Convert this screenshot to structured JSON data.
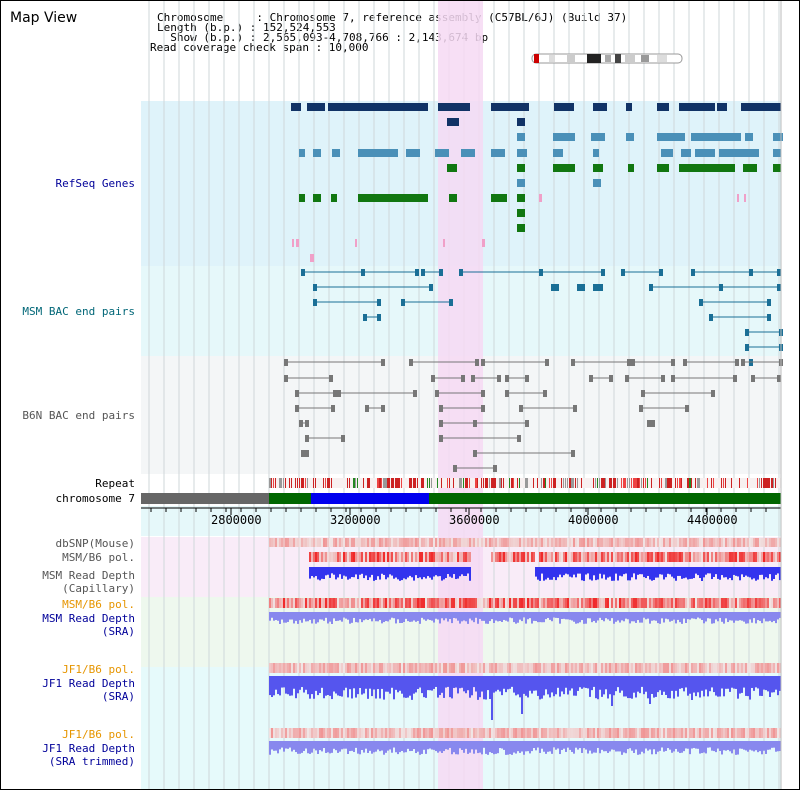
{
  "title": "Map View",
  "header": {
    "line1": "Chromosome     : Chromosome 7, reference assembly (C57BL/6J) (Build 37)",
    "line2": "Length (b.p.) : 152,524,553",
    "line3": "  Show (b.p.) : 2,565,093-4,708,766 : 2,143,674 bp",
    "line4": "Read coverage check span : 10,000"
  },
  "tracks": {
    "refseq": "RefSeq Genes",
    "msm_bac": "MSM BAC end pairs",
    "b6n_bac": "B6N BAC end pairs",
    "repeat": "Repeat",
    "chromosome": "chromosome 7",
    "dbsnp": "dbSNP(Mouse)",
    "msm_b6_pol_1": "MSM/B6 pol.",
    "msm_depth_cap": "MSM Read Depth\n(Capillary)",
    "msm_b6_pol_2": "MSM/B6 pol.",
    "msm_depth_sra": "MSM Read Depth\n(SRA)",
    "jf1_b6_pol_1": "JF1/B6 pol.",
    "jf1_depth_sra": "JF1 Read Depth\n(SRA)",
    "jf1_b6_pol_2": "JF1/B6 pol.",
    "jf1_depth_trim": "JF1 Read Depth\n(SRA trimmed)"
  },
  "axis": {
    "ticks": [
      "2800000",
      "3200000",
      "3600000",
      "4000000",
      "4400000"
    ]
  },
  "colors": {
    "refseq_bg": "#dff3fa",
    "msm_bg": "#e6f8fa",
    "b6n_bg": "#f4f6f7",
    "highlight": "#f6d9f3",
    "label_blue": "#000099",
    "label_gray": "#555555",
    "label_orange": "#e69500",
    "gene_dark": "#113366",
    "gene_mid": "#4a90b8",
    "gene_green": "#117711"
  }
}
